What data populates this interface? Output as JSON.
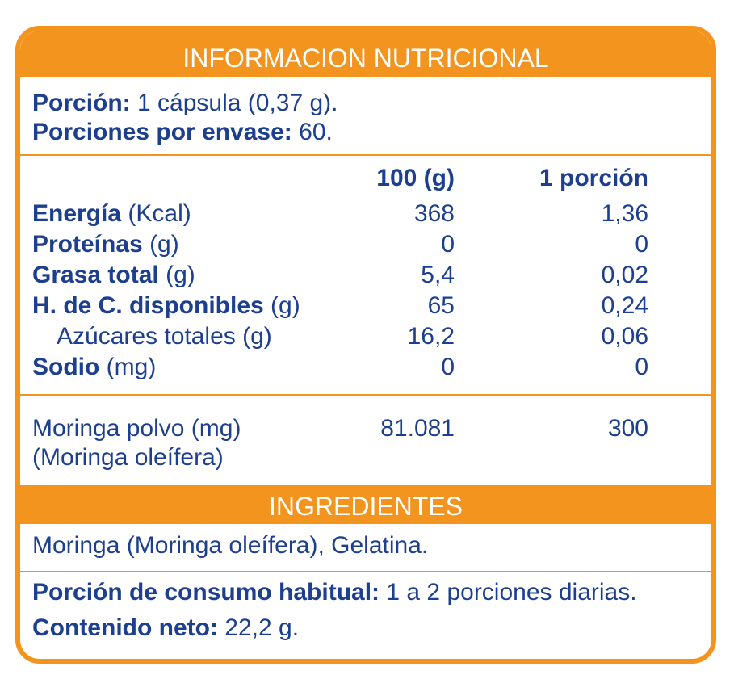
{
  "title": "INFORMACION NUTRICIONAL",
  "serving": {
    "portion_label": "Porción:",
    "portion_value": "1 cápsula (0,37 g).",
    "per_container_label": "Porciones por envase:",
    "per_container_value": "60."
  },
  "columns": {
    "col1": "100 (g)",
    "col2": "1 porción"
  },
  "nutrients": [
    {
      "name": "Energía",
      "unit": "(Kcal)",
      "per100": "368",
      "perPortion": "1,36"
    },
    {
      "name": "Proteínas",
      "unit": "(g)",
      "per100": "0",
      "perPortion": "0"
    },
    {
      "name": "Grasa total",
      "unit": "(g)",
      "per100": "5,4",
      "perPortion": "0,02"
    },
    {
      "name": "H. de C. disponibles",
      "unit": "(g)",
      "per100": "65",
      "perPortion": "0,24"
    },
    {
      "name": "Azúcares totales (g)",
      "unit": "",
      "per100": "16,2",
      "perPortion": "0,06"
    },
    {
      "name": "Sodio",
      "unit": "(mg)",
      "per100": "0",
      "perPortion": "0"
    }
  ],
  "moringa": {
    "line1": "Moringa polvo (mg)",
    "line2": "(Moringa oleífera)",
    "per100": "81.081",
    "perPortion": "300"
  },
  "ingredients": {
    "title": "INGREDIENTES",
    "text": "Moringa (Moringa oleífera), Gelatina."
  },
  "footer": {
    "habitual_label": "Porción de consumo habitual:",
    "habitual_value": "1 a 2 porciones diarias.",
    "net_label": "Contenido neto:",
    "net_value": "22,2 g."
  }
}
